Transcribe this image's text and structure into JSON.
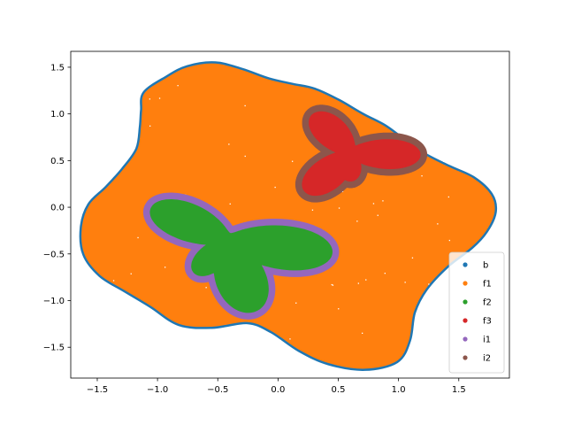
{
  "chart_data": {
    "type": "scatter",
    "title": "",
    "xlabel": "",
    "ylabel": "",
    "xlim": [
      -1.72,
      1.92
    ],
    "ylim": [
      -1.83,
      1.67
    ],
    "xticks": [
      -1.5,
      -1.0,
      -0.5,
      0.0,
      0.5,
      1.0,
      1.5
    ],
    "xtick_labels": [
      "−1.5",
      "−1.0",
      "−0.5",
      "0.0",
      "0.5",
      "1.0",
      "1.5"
    ],
    "yticks": [
      -1.5,
      -1.0,
      -0.5,
      0.0,
      0.5,
      1.0,
      1.5
    ],
    "ytick_labels": [
      "−1.5",
      "−1.0",
      "−0.5",
      "0.0",
      "0.5",
      "1.0",
      "1.5"
    ],
    "grid": false,
    "legend_position": "lower-right",
    "series": [
      {
        "name": "b",
        "color": "#1f77b4",
        "region": "outer boundary of the blob",
        "boundary_points": [
          [
            -1.1,
            1.22
          ],
          [
            -0.92,
            1.38
          ],
          [
            -0.75,
            1.49
          ],
          [
            -0.52,
            1.53
          ],
          [
            -0.3,
            1.46
          ],
          [
            -0.08,
            1.36
          ],
          [
            0.12,
            1.3
          ],
          [
            0.3,
            1.25
          ],
          [
            0.5,
            1.13
          ],
          [
            0.7,
            0.98
          ],
          [
            0.88,
            0.86
          ],
          [
            1.05,
            0.7
          ],
          [
            1.22,
            0.55
          ],
          [
            1.42,
            0.42
          ],
          [
            1.62,
            0.3
          ],
          [
            1.76,
            0.13
          ],
          [
            1.79,
            -0.05
          ],
          [
            1.72,
            -0.25
          ],
          [
            1.6,
            -0.42
          ],
          [
            1.4,
            -0.62
          ],
          [
            1.22,
            -0.87
          ],
          [
            1.12,
            -1.12
          ],
          [
            1.08,
            -1.42
          ],
          [
            0.98,
            -1.64
          ],
          [
            0.72,
            -1.72
          ],
          [
            0.42,
            -1.66
          ],
          [
            0.18,
            -1.52
          ],
          [
            -0.05,
            -1.32
          ],
          [
            -0.25,
            -1.22
          ],
          [
            -0.55,
            -1.27
          ],
          [
            -0.82,
            -1.24
          ],
          [
            -1.05,
            -1.05
          ],
          [
            -1.27,
            -0.88
          ],
          [
            -1.47,
            -0.72
          ],
          [
            -1.6,
            -0.5
          ],
          [
            -1.62,
            -0.22
          ],
          [
            -1.56,
            0.02
          ],
          [
            -1.42,
            0.2
          ],
          [
            -1.28,
            0.4
          ],
          [
            -1.16,
            0.62
          ],
          [
            -1.13,
            0.86
          ],
          [
            -1.12,
            1.04
          ]
        ]
      },
      {
        "name": "f1",
        "color": "#ff7f0e",
        "region": "interior of the blob"
      },
      {
        "name": "f2",
        "color": "#2ca02c",
        "region": "interior of the lower-left four-lobed flower",
        "center": [
          -0.42,
          -0.35
        ],
        "lobe_angles_deg": [
          150,
          235,
          285,
          350
        ],
        "lobe_lengths": [
          0.72,
          0.45,
          0.8,
          0.88
        ]
      },
      {
        "name": "f3",
        "color": "#d62728",
        "region": "interior of the upper-right four-lobed flower",
        "center": [
          0.6,
          0.58
        ],
        "lobe_angles_deg": [
          125,
          230,
          270,
          358
        ],
        "lobe_lengths": [
          0.52,
          0.56,
          0.3,
          0.58
        ]
      },
      {
        "name": "i1",
        "color": "#9467bd",
        "region": "ring around f2"
      },
      {
        "name": "i2",
        "color": "#8c564b",
        "region": "ring around f3"
      }
    ]
  }
}
